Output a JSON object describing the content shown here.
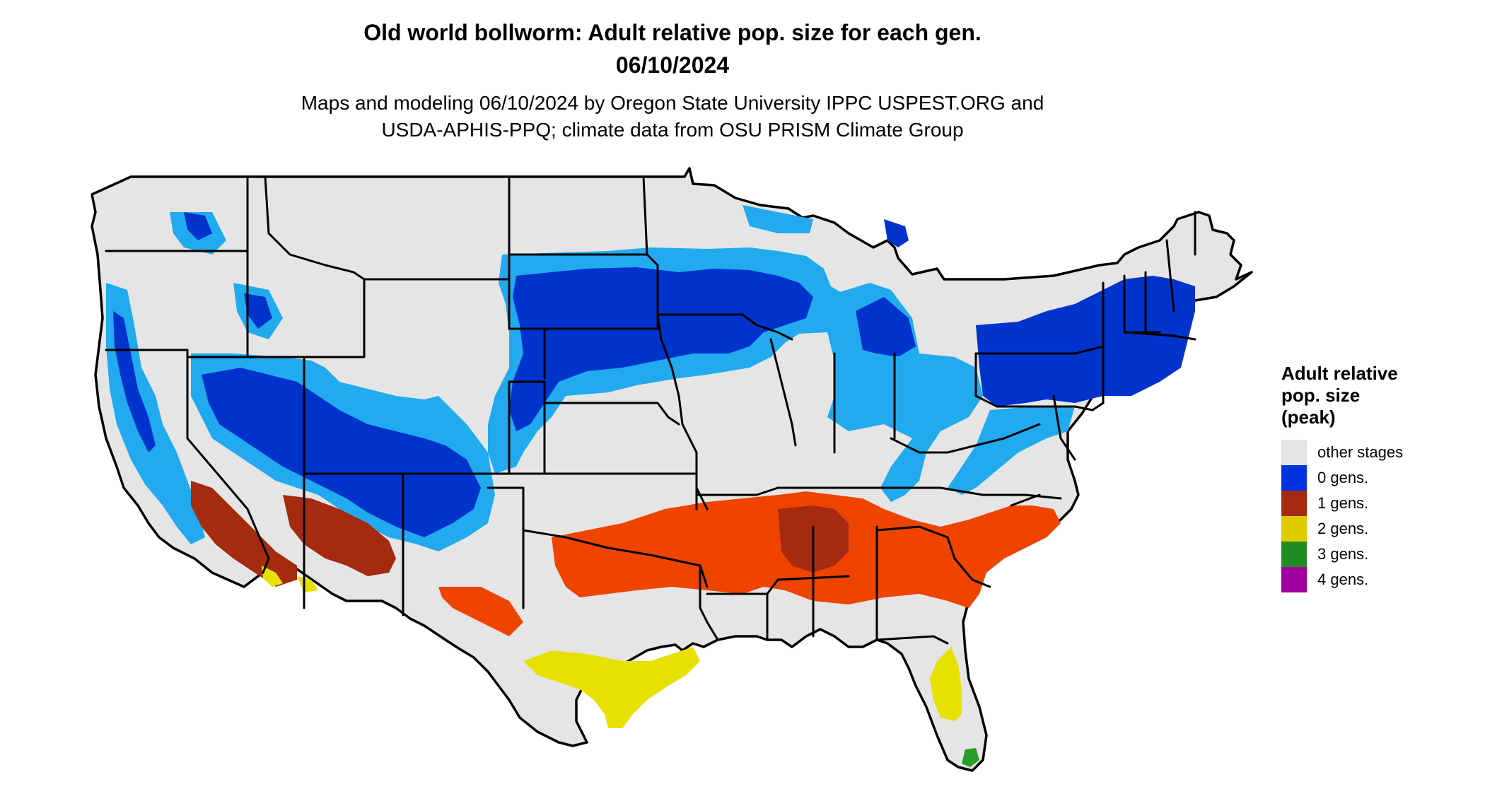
{
  "header": {
    "title_line1": "Old world bollworm: Adult relative pop. size for each gen.",
    "title_line2": "06/10/2024",
    "subtitle_line1": "Maps and modeling 06/10/2024 by Oregon State University IPPC USPEST.ORG and",
    "subtitle_line2": "USDA-APHIS-PPQ; climate data from OSU PRISM Climate Group"
  },
  "legend": {
    "title_line1": "Adult relative",
    "title_line2": "pop. size",
    "title_line3": "(peak)",
    "items": [
      {
        "label": "other stages",
        "color": "#e5e5e5"
      },
      {
        "label": "0 gens.",
        "color": "#0033dd"
      },
      {
        "label": "1 gens.",
        "color": "#a52a10"
      },
      {
        "label": "2 gens.",
        "color": "#ddcc00"
      },
      {
        "label": "3 gens.",
        "color": "#228b22"
      },
      {
        "label": "4 gens.",
        "color": "#a000a0"
      }
    ]
  },
  "map": {
    "land_color": "#e5e5e5",
    "border_color": "#000000",
    "zone_colors": {
      "gen0_light": "#22aaee",
      "gen0_dark": "#0033cc",
      "gen1_bright": "#ee4400",
      "gen1_dark": "#a52a10",
      "gen2": "#e8e000",
      "gen3": "#2a9a2a"
    }
  }
}
